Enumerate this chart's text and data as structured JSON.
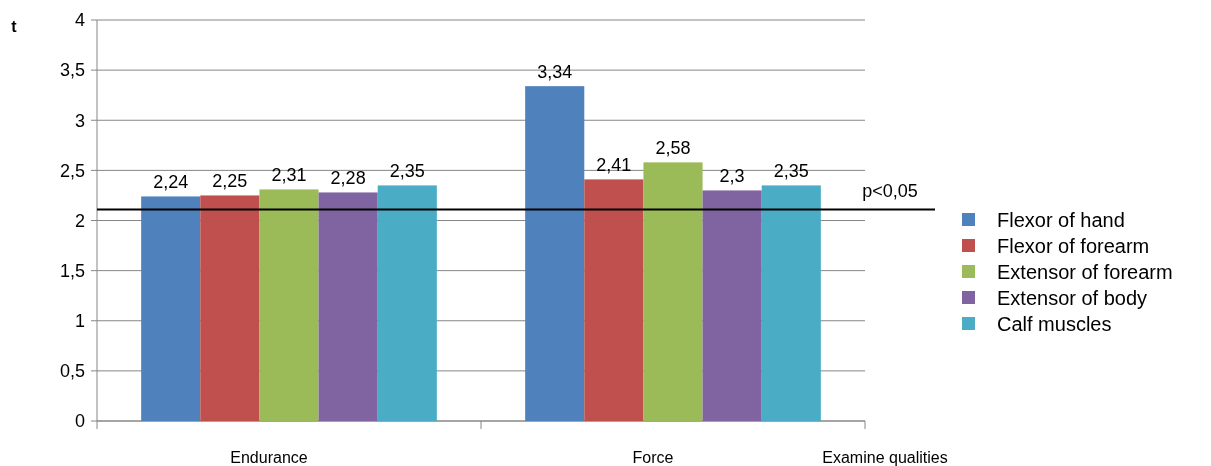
{
  "chart_data": {
    "type": "bar",
    "ylabel": "t",
    "xlabel": "Examine qualities",
    "categories": [
      "Endurance",
      "Force"
    ],
    "series": [
      {
        "name": "Flexor of hand",
        "color": "#4f81bd",
        "values": [
          2.24,
          3.34
        ],
        "value_labels": [
          "2,24",
          "3,34"
        ]
      },
      {
        "name": "Flexor of forearm",
        "color": "#c0504d",
        "values": [
          2.25,
          2.41
        ],
        "value_labels": [
          "2,25",
          "2,41"
        ]
      },
      {
        "name": "Extensor of forearm",
        "color": "#9bbb59",
        "values": [
          2.31,
          2.58
        ],
        "value_labels": [
          "2,31",
          "2,58"
        ]
      },
      {
        "name": "Extensor of body",
        "color": "#8064a2",
        "values": [
          2.28,
          2.3
        ],
        "value_labels": [
          "2,28",
          "2,3"
        ]
      },
      {
        "name": "Calf muscles",
        "color": "#4bacc6",
        "values": [
          2.35,
          2.35
        ],
        "value_labels": [
          "2,35",
          "2,35"
        ]
      }
    ],
    "ylim": [
      0,
      4
    ],
    "yticks": [
      0,
      {
        "value": 0.5,
        "label": "0,5"
      },
      1,
      {
        "value": 1.5,
        "label": "1,5"
      },
      2,
      {
        "value": 2.5,
        "label": "2,5"
      },
      3,
      {
        "value": 3.5,
        "label": "3,5"
      },
      4
    ],
    "grid": "y",
    "legend": "right",
    "ref_lines": [
      {
        "axis": "y",
        "value": 2.11,
        "label": "p<0,05",
        "color": "#000000"
      }
    ]
  }
}
